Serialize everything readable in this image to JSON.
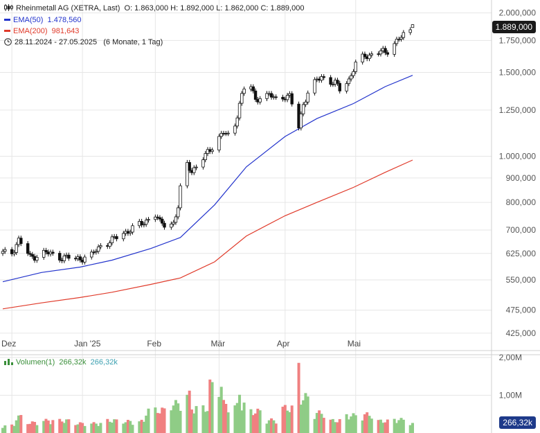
{
  "header": {
    "title": "Rheinmetall AG (XETRA, Last)",
    "ohlc": "O: 1.863,000  H: 1.892,000  L: 1.862,000  C: 1.889,000",
    "ema50_label": "EMA(50)",
    "ema50_value": "1.478,560",
    "ema200_label": "EMA(200)",
    "ema200_value": "981,643",
    "range": "28.11.2024 - 27.05.2025",
    "range_note": "(6 Monate, 1 Tag)"
  },
  "last_price_tag": "1.889,000",
  "volume_legend": {
    "label": "Volumen(1)",
    "value1": "266,32k",
    "value2": "266,32k"
  },
  "volume_tag": "266,32k",
  "colors": {
    "ema50": "#2233cc",
    "ema200": "#e03a2a",
    "volume_up": "#8fcc86",
    "volume_down": "#f08080",
    "volume_label": "#3a8f3a",
    "volume_value2": "#3a9fb0",
    "candle": "#111111",
    "grid": "#e6e6e6"
  },
  "chart_data": [
    {
      "type": "candlestick",
      "scale": "log",
      "ylim": [
        400,
        2100
      ],
      "y_ticks": [
        "2.000,000",
        "1.750,000",
        "1.500,000",
        "1.250,000",
        "1.000,000",
        "900,000",
        "800,000",
        "700,000",
        "625,000",
        "550,000",
        "475,000",
        "425,000"
      ],
      "y_tick_values": [
        2000,
        1750,
        1500,
        1250,
        1000,
        900,
        800,
        700,
        625,
        550,
        475,
        425
      ],
      "x_ticks": [
        "Dez",
        "Jan '25",
        "Feb",
        "Mär",
        "Apr",
        "Mai"
      ],
      "x_tick_dates": [
        "2024-12-02",
        "2025-01-02",
        "2025-02-03",
        "2025-03-03",
        "2025-04-01",
        "2025-05-02"
      ],
      "close_points": [
        [
          "2024-11-28",
          625
        ],
        [
          "2024-12-02",
          627
        ],
        [
          "2024-12-05",
          668
        ],
        [
          "2024-12-10",
          612
        ],
        [
          "2024-12-16",
          628
        ],
        [
          "2024-12-23",
          615
        ],
        [
          "2024-12-30",
          608
        ],
        [
          "2025-01-02",
          612
        ],
        [
          "2025-01-06",
          618
        ],
        [
          "2025-01-10",
          650
        ],
        [
          "2025-01-15",
          665
        ],
        [
          "2025-01-20",
          690
        ],
        [
          "2025-01-24",
          705
        ],
        [
          "2025-01-28",
          720
        ],
        [
          "2025-01-31",
          740
        ],
        [
          "2025-02-03",
          755
        ],
        [
          "2025-02-05",
          722
        ],
        [
          "2025-02-07",
          720
        ],
        [
          "2025-02-11",
          725
        ],
        [
          "2025-02-13",
          780
        ],
        [
          "2025-02-14",
          850
        ],
        [
          "2025-02-17",
          960
        ],
        [
          "2025-02-19",
          935
        ],
        [
          "2025-02-21",
          950
        ],
        [
          "2025-02-25",
          1000
        ],
        [
          "2025-03-03",
          1100
        ],
        [
          "2025-03-05",
          1120
        ],
        [
          "2025-03-07",
          1100
        ],
        [
          "2025-03-10",
          1160
        ],
        [
          "2025-03-12",
          1300
        ],
        [
          "2025-03-14",
          1380
        ],
        [
          "2025-03-17",
          1400
        ],
        [
          "2025-03-19",
          1310
        ],
        [
          "2025-03-21",
          1340
        ],
        [
          "2025-03-25",
          1340
        ],
        [
          "2025-03-28",
          1320
        ],
        [
          "2025-04-01",
          1340
        ],
        [
          "2025-04-03",
          1330
        ],
        [
          "2025-04-07",
          1150
        ],
        [
          "2025-04-09",
          1290
        ],
        [
          "2025-04-11",
          1360
        ],
        [
          "2025-04-15",
          1440
        ],
        [
          "2025-04-17",
          1470
        ],
        [
          "2025-04-23",
          1420
        ],
        [
          "2025-04-25",
          1380
        ],
        [
          "2025-04-29",
          1450
        ],
        [
          "2025-05-02",
          1560
        ],
        [
          "2025-05-06",
          1620
        ],
        [
          "2025-05-09",
          1640
        ],
        [
          "2025-05-13",
          1660
        ],
        [
          "2025-05-15",
          1640
        ],
        [
          "2025-05-19",
          1740
        ],
        [
          "2025-05-22",
          1780
        ],
        [
          "2025-05-26",
          1820
        ],
        [
          "2025-05-27",
          1889
        ]
      ],
      "last_candle": {
        "date": "2025-05-27",
        "open": 1863,
        "high": 1892,
        "low": 1862,
        "close": 1889
      },
      "ema50_points": [
        [
          "2024-11-28",
          545
        ],
        [
          "2024-12-15",
          570
        ],
        [
          "2025-01-01",
          585
        ],
        [
          "2025-01-15",
          605
        ],
        [
          "2025-02-01",
          640
        ],
        [
          "2025-02-14",
          675
        ],
        [
          "2025-03-01",
          790
        ],
        [
          "2025-03-15",
          950
        ],
        [
          "2025-04-01",
          1100
        ],
        [
          "2025-04-15",
          1200
        ],
        [
          "2025-05-01",
          1290
        ],
        [
          "2025-05-15",
          1400
        ],
        [
          "2025-05-27",
          1478.56
        ]
      ],
      "ema200_points": [
        [
          "2024-11-28",
          478
        ],
        [
          "2024-12-15",
          492
        ],
        [
          "2025-01-01",
          505
        ],
        [
          "2025-01-15",
          518
        ],
        [
          "2025-02-01",
          538
        ],
        [
          "2025-02-14",
          555
        ],
        [
          "2025-03-01",
          600
        ],
        [
          "2025-03-15",
          680
        ],
        [
          "2025-04-01",
          750
        ],
        [
          "2025-04-15",
          800
        ],
        [
          "2025-05-01",
          860
        ],
        [
          "2025-05-15",
          925
        ],
        [
          "2025-05-27",
          981.643
        ]
      ]
    },
    {
      "type": "bar",
      "series": [
        {
          "name": "Volumen(1)",
          "last_value": "266,32k"
        }
      ],
      "y_ticks": [
        "2,00M",
        "1,00M"
      ],
      "y_tick_values": [
        2000000,
        1000000
      ],
      "ylim": [
        0,
        2000000
      ],
      "volume_points": [
        [
          "2024-12-02",
          180000
        ],
        [
          "2024-12-05",
          390000
        ],
        [
          "2024-12-12",
          250000
        ],
        [
          "2024-12-19",
          300000
        ],
        [
          "2025-01-06",
          230000
        ],
        [
          "2025-01-15",
          300000
        ],
        [
          "2025-01-24",
          280000
        ],
        [
          "2025-02-05",
          550000
        ],
        [
          "2025-02-13",
          700000
        ],
        [
          "2025-02-14",
          780000
        ],
        [
          "2025-02-17",
          900000
        ],
        [
          "2025-02-21",
          600000
        ],
        [
          "2025-03-04",
          1150000
        ],
        [
          "2025-03-06",
          700000
        ],
        [
          "2025-03-11",
          640000
        ],
        [
          "2025-03-12",
          1000000
        ],
        [
          "2025-03-14",
          670000
        ],
        [
          "2025-03-20",
          520000
        ],
        [
          "2025-03-28",
          310000
        ],
        [
          "2025-04-03",
          600000
        ],
        [
          "2025-04-07",
          1550000
        ],
        [
          "2025-04-09",
          850000
        ],
        [
          "2025-04-15",
          480000
        ],
        [
          "2025-04-23",
          300000
        ],
        [
          "2025-05-02",
          420000
        ],
        [
          "2025-05-08",
          440000
        ],
        [
          "2025-05-14",
          290000
        ],
        [
          "2025-05-20",
          320000
        ],
        [
          "2025-05-27",
          266320
        ]
      ]
    }
  ]
}
